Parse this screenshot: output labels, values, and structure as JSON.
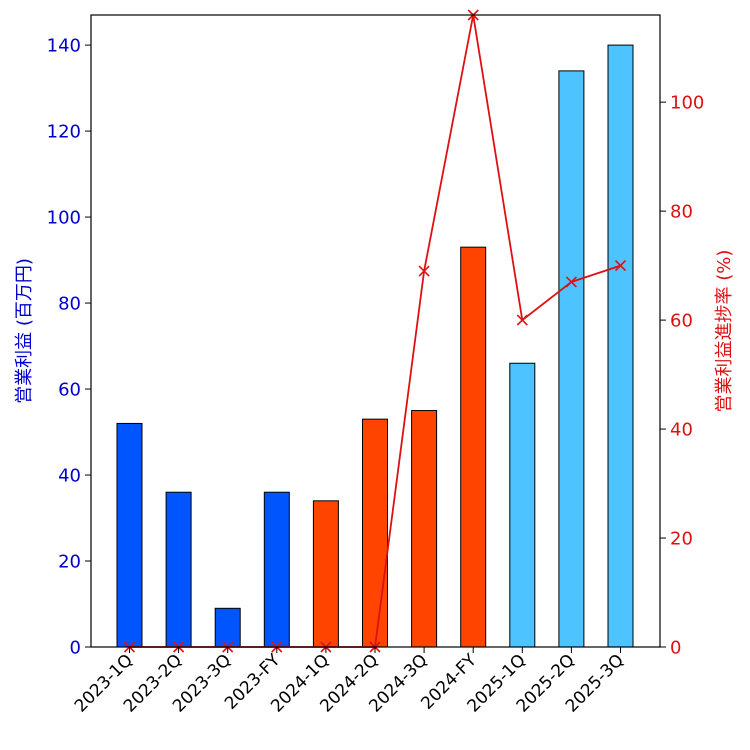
{
  "chart_data": {
    "type": "bar+line",
    "categories": [
      "2023-1Q",
      "2023-2Q",
      "2023-3Q",
      "2023-FY",
      "2024-1Q",
      "2024-2Q",
      "2024-3Q",
      "2024-FY",
      "2025-1Q",
      "2025-2Q",
      "2025-3Q"
    ],
    "bars": {
      "name": "営業利益 (百万円)",
      "values": [
        52,
        36,
        9,
        36,
        34,
        53,
        55,
        93,
        66,
        134,
        140
      ],
      "colors": [
        "#0055ff",
        "#0055ff",
        "#0055ff",
        "#0055ff",
        "#ff4400",
        "#ff4400",
        "#ff4400",
        "#ff4400",
        "#4dc3ff",
        "#4dc3ff",
        "#4dc3ff"
      ]
    },
    "line": {
      "name": "営業利益進捗率 (%)",
      "values": [
        0,
        0,
        0,
        0,
        0,
        0,
        69,
        116,
        60,
        67,
        70
      ],
      "color": "#dd1111",
      "marker": "x"
    },
    "y_left": {
      "label": "営業利益 (百万円)",
      "range": [
        0,
        147
      ],
      "ticks": [
        0,
        20,
        40,
        60,
        80,
        100,
        120,
        140
      ],
      "color": "#0000cc"
    },
    "y_right": {
      "label": "営業利益進捗率 (%)",
      "range": [
        0,
        116
      ],
      "ticks": [
        0,
        20,
        40,
        60,
        80,
        100
      ],
      "color": "#dd1111"
    }
  }
}
